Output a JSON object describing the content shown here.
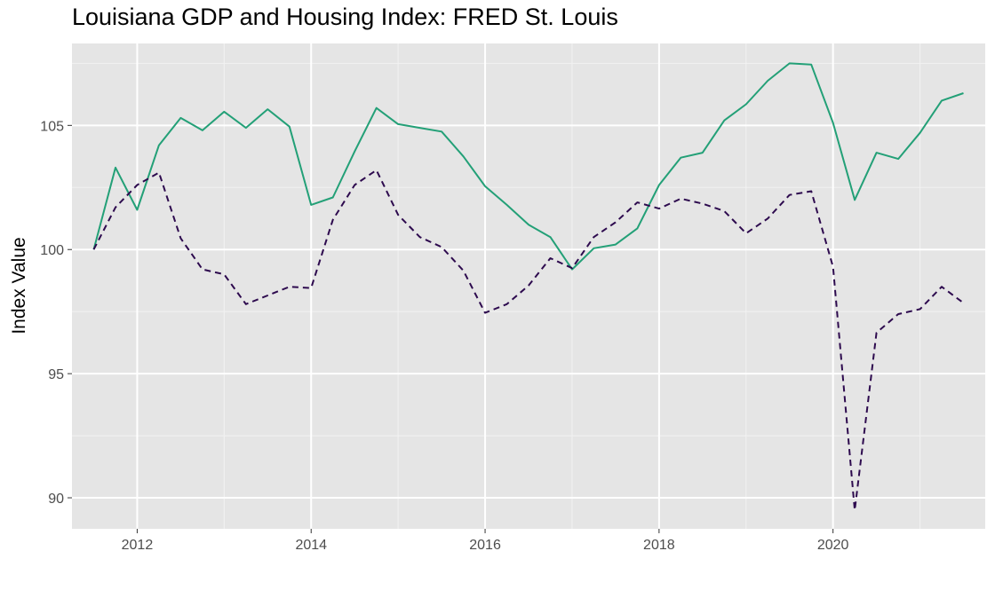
{
  "chart_data": {
    "type": "line",
    "title": "Louisiana GDP and Housing Index: FRED St. Louis",
    "xlabel": "",
    "ylabel": "Index Value",
    "xlim": [
      2011.25,
      2021.75
    ],
    "ylim": [
      88.75,
      108.3
    ],
    "x_ticks": [
      2012,
      2014,
      2016,
      2018,
      2020
    ],
    "x_tick_labels": [
      "2012",
      "2014",
      "2016",
      "2018",
      "2020"
    ],
    "y_ticks": [
      90,
      95,
      100,
      105
    ],
    "y_tick_labels": [
      "90",
      "95",
      "100",
      "105"
    ],
    "grid": true,
    "legend": "none",
    "x": [
      2011.5,
      2011.75,
      2012.0,
      2012.25,
      2012.5,
      2012.75,
      2013.0,
      2013.25,
      2013.5,
      2013.75,
      2014.0,
      2014.25,
      2014.5,
      2014.75,
      2015.0,
      2015.25,
      2015.5,
      2015.75,
      2016.0,
      2016.25,
      2016.5,
      2016.75,
      2017.0,
      2017.25,
      2017.5,
      2017.75,
      2018.0,
      2018.25,
      2018.5,
      2018.75,
      2019.0,
      2019.25,
      2019.5,
      2019.75,
      2020.0,
      2020.25,
      2020.5,
      2020.75,
      2021.0,
      2021.25,
      2021.5
    ],
    "series": [
      {
        "color": "#23a077",
        "linestyle": "solid",
        "values": [
          100.0,
          103.3,
          101.6,
          104.2,
          105.3,
          104.8,
          105.55,
          104.9,
          105.65,
          104.95,
          101.8,
          102.1,
          103.95,
          105.7,
          105.05,
          104.9,
          104.75,
          103.75,
          102.55,
          101.8,
          101.0,
          100.5,
          99.2,
          100.05,
          100.2,
          100.85,
          102.6,
          103.7,
          103.9,
          105.2,
          105.85,
          106.8,
          107.5,
          107.45,
          105.1,
          102.0,
          103.9,
          103.65,
          104.7,
          106.0,
          106.3
        ]
      },
      {
        "color": "#2d0a4e",
        "linestyle": "dashed",
        "values": [
          100.0,
          101.7,
          102.6,
          103.1,
          100.45,
          99.2,
          99.0,
          97.8,
          98.15,
          98.5,
          98.45,
          101.2,
          102.6,
          103.2,
          101.4,
          100.5,
          100.1,
          99.15,
          97.45,
          97.8,
          98.55,
          99.65,
          99.25,
          100.5,
          101.1,
          101.9,
          101.65,
          102.05,
          101.85,
          101.55,
          100.65,
          101.25,
          102.2,
          102.35,
          99.3,
          89.5,
          96.65,
          97.4,
          97.6,
          98.5,
          97.85
        ]
      }
    ]
  }
}
